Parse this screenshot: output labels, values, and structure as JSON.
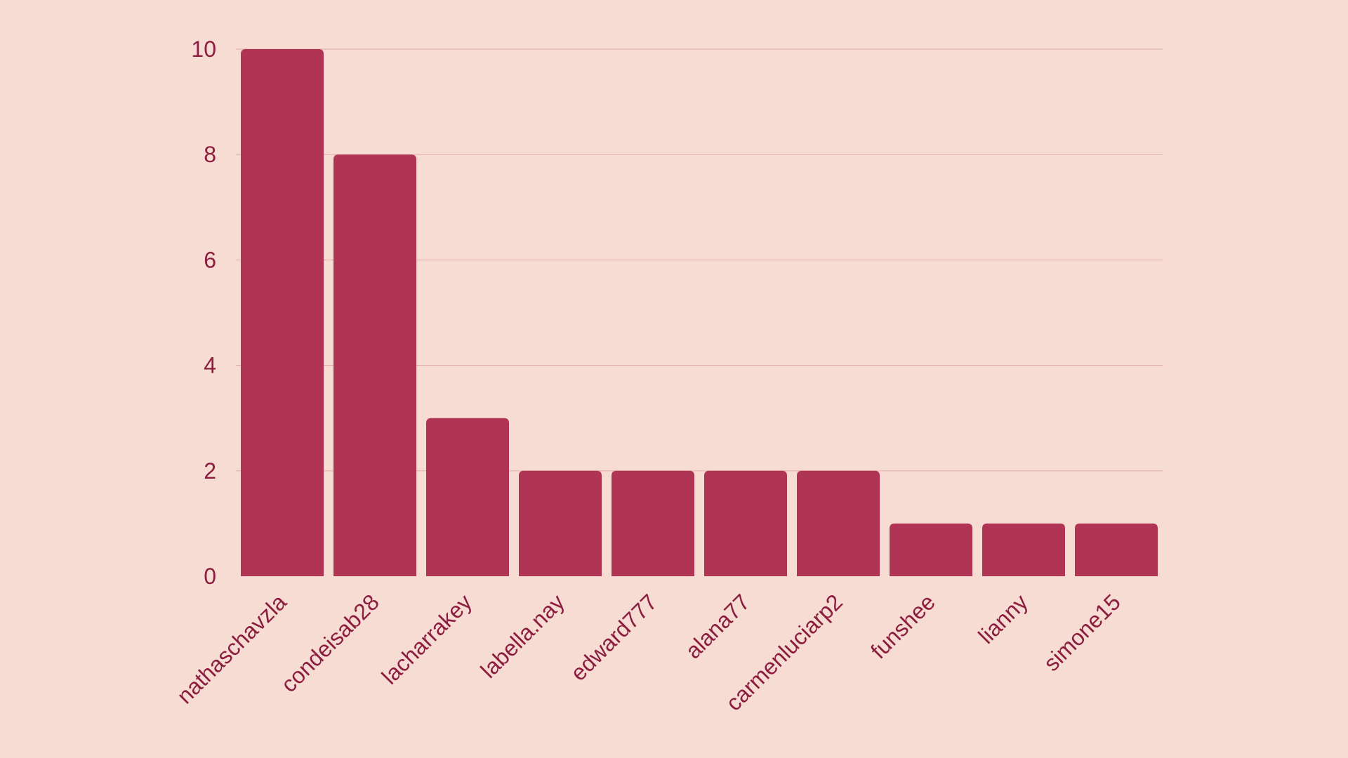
{
  "colors": {
    "background": "#F6DCD3",
    "bar": "#B03453",
    "text": "#8C1D3F",
    "grid": "#E3B2AE"
  },
  "chart_data": {
    "type": "bar",
    "title": "",
    "xlabel": "",
    "ylabel": "",
    "categories": [
      "nathaschavzla",
      "condeisab28",
      "lacharrakey",
      "labella.nay",
      "edward777",
      "alana77",
      "carmenluciarp2",
      "funshee",
      "lianny",
      "simone15"
    ],
    "values": [
      10,
      8,
      3,
      2,
      2,
      2,
      2,
      1,
      1,
      1
    ],
    "ylim": [
      0,
      10
    ],
    "yticks": [
      "0",
      "2",
      "4",
      "6",
      "8",
      "10"
    ],
    "grid": true,
    "legend": "none"
  }
}
